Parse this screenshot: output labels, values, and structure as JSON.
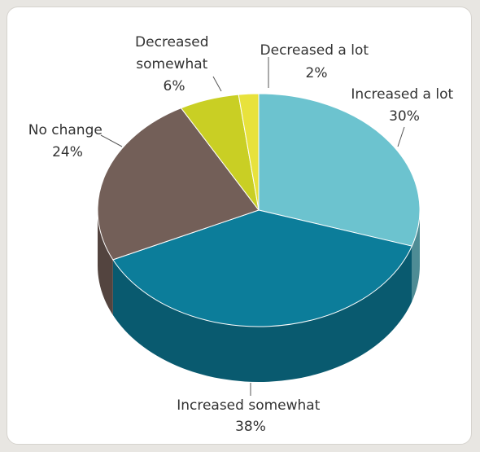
{
  "chart_data": {
    "type": "pie",
    "style": "3d",
    "title": "",
    "slices": [
      {
        "label": "Increased a lot",
        "pct_text": "30%",
        "value": 30,
        "color": "#6cc3cf"
      },
      {
        "label": "Increased somewhat",
        "pct_text": "38%",
        "value": 38,
        "color": "#0c7d9a"
      },
      {
        "label": "No change",
        "pct_text": "24%",
        "value": 24,
        "color": "#735f58"
      },
      {
        "label": "Decreased somewhat",
        "label_lines": [
          "Decreased",
          "somewhat"
        ],
        "pct_text": "6%",
        "value": 6,
        "color": "#c9cf24"
      },
      {
        "label": "Decreased a lot",
        "pct_text": "2%",
        "value": 2,
        "color": "#e8e23c"
      }
    ]
  }
}
